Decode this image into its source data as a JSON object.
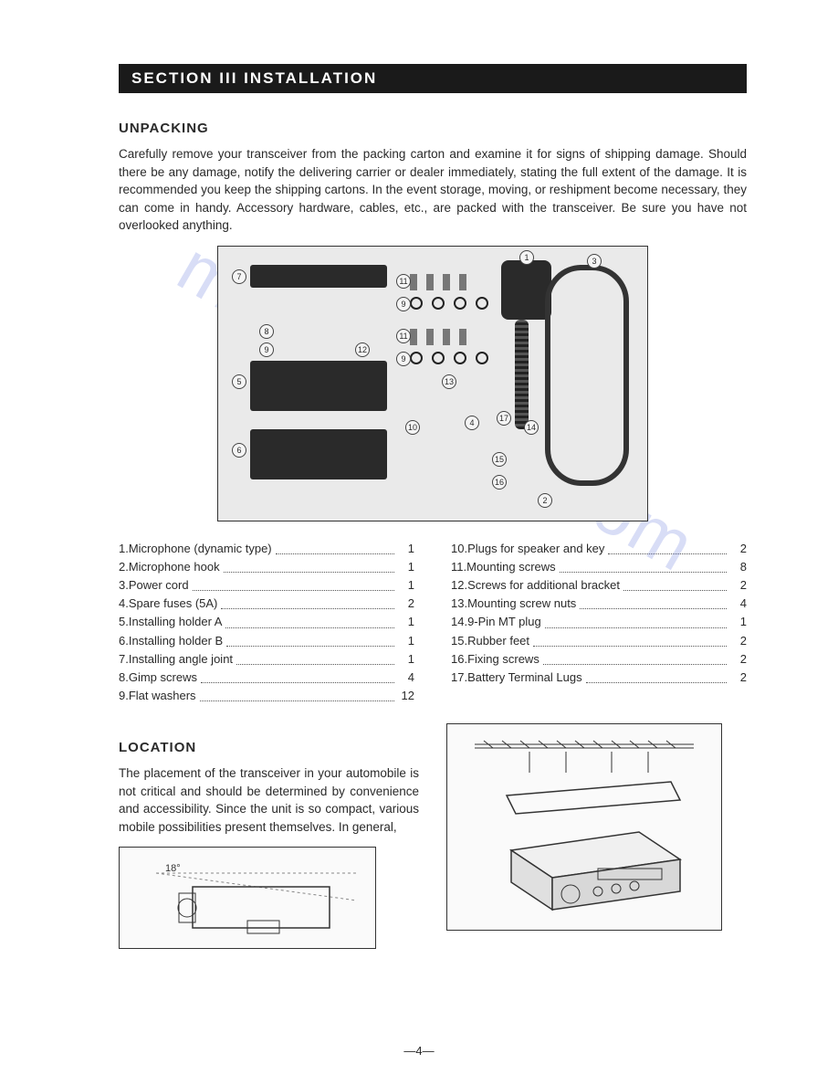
{
  "banner": "SECTION  III  INSTALLATION",
  "unpacking": {
    "heading": "UNPACKING",
    "text": "Carefully remove your transceiver from the packing carton and examine it for signs of shipping damage. Should there be any damage, notify the delivering carrier or dealer immediately, stating the full extent of the damage. It is recommended you keep the shipping cartons. In the event storage, moving, or reshipment become necessary, they can come in handy. Accessory hardware, cables, etc., are packed with the transceiver. Be sure you have not overlooked anything."
  },
  "parts_left": [
    {
      "n": "1.",
      "label": "Microphone (dynamic type)",
      "qty": "1"
    },
    {
      "n": "2.",
      "label": "Microphone hook",
      "qty": "1"
    },
    {
      "n": "3.",
      "label": "Power cord",
      "qty": "1"
    },
    {
      "n": "4.",
      "label": "Spare fuses (5A)",
      "qty": "2"
    },
    {
      "n": "5.",
      "label": "Installing holder A",
      "qty": "1"
    },
    {
      "n": "6.",
      "label": "Installing holder B",
      "qty": "1"
    },
    {
      "n": "7.",
      "label": "Installing angle joint",
      "qty": "1"
    },
    {
      "n": "8.",
      "label": "Gimp screws",
      "qty": "4"
    },
    {
      "n": "9.",
      "label": "Flat washers",
      "qty": "12"
    }
  ],
  "parts_right": [
    {
      "n": "10.",
      "label": "Plugs for speaker and key",
      "qty": "2"
    },
    {
      "n": "11.",
      "label": "Mounting screws",
      "qty": "8"
    },
    {
      "n": "12.",
      "label": "Screws for additional bracket",
      "qty": "2"
    },
    {
      "n": "13.",
      "label": "Mounting screw nuts",
      "qty": "4"
    },
    {
      "n": "14.",
      "label": "9-Pin MT plug",
      "qty": "1"
    },
    {
      "n": "15.",
      "label": "Rubber feet",
      "qty": "2"
    },
    {
      "n": "16.",
      "label": "Fixing screws",
      "qty": "2"
    },
    {
      "n": "17.",
      "label": "Battery Terminal Lugs",
      "qty": "2"
    }
  ],
  "location": {
    "heading": "LOCATION",
    "text": "The placement of the transceiver in your automobile is not critical and should be determined by convenience and accessibility. Since the unit is so compact, various mobile possibilities present themselves. In general,"
  },
  "page_number": "—4—",
  "watermark": "manualshive.com",
  "diagram_labels": {
    "angle": "18°"
  }
}
